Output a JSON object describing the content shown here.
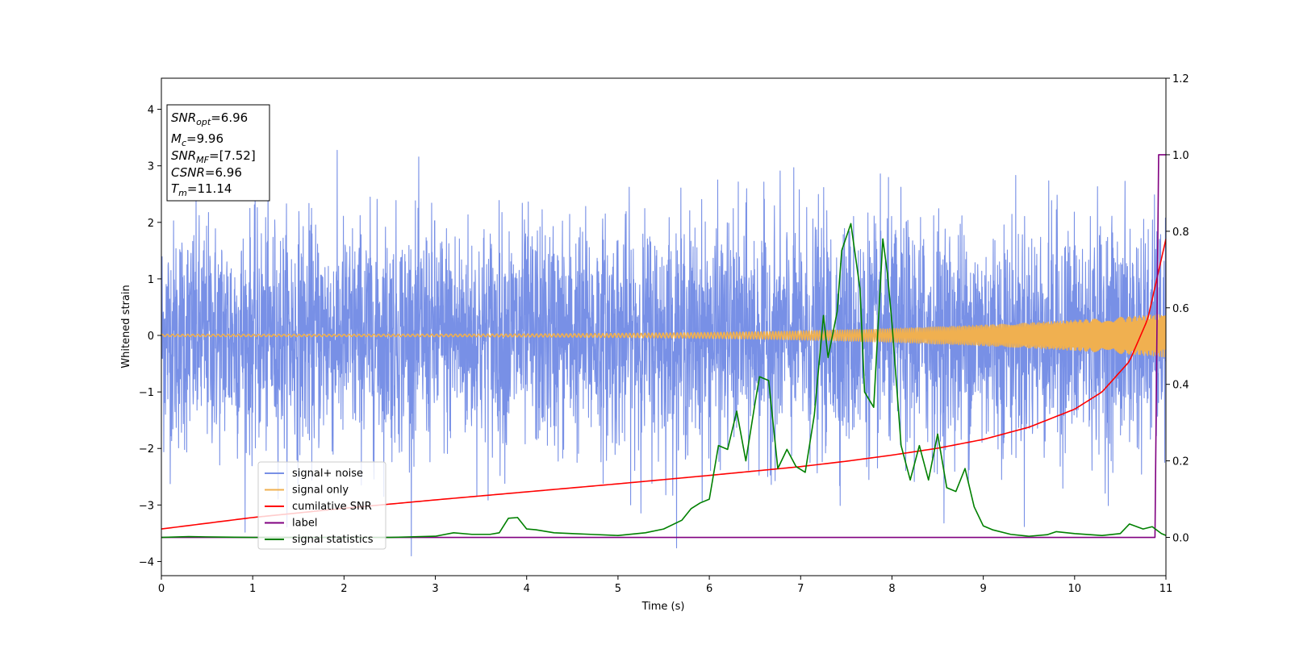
{
  "chart_data": {
    "type": "line",
    "xlabel": "Time (s)",
    "ylabel": "Whitened strain",
    "xlim": [
      0,
      11
    ],
    "ylim_left": [
      -4.25,
      4.55
    ],
    "ylim_right": [
      -0.1,
      1.2
    ],
    "x_ticks": [
      "0",
      "1",
      "2",
      "3",
      "4",
      "5",
      "6",
      "7",
      "8",
      "9",
      "10",
      "11"
    ],
    "y_ticks_left": [
      "4",
      "3",
      "2",
      "1",
      "0",
      "−1",
      "−2",
      "−3",
      "−4"
    ],
    "y_ticks_right": [
      "1.2",
      "1.0",
      "0.8",
      "0.6",
      "0.4",
      "0.2",
      "0.0"
    ],
    "info_box": {
      "snr_opt": {
        "main": "SNR",
        "sub": "opt",
        "value": "=6.96"
      },
      "mc": {
        "main": "M",
        "sub": "c",
        "value": "=9.96"
      },
      "snr_mf": {
        "main": "SNR",
        "sub": "MF",
        "value": "=[7.52]"
      },
      "csnr": {
        "main": "CSNR",
        "value": "=6.96"
      },
      "tm": {
        "main": "T",
        "sub": "m",
        "value": "=11.14"
      }
    },
    "legend_position": "lower-left",
    "series": [
      {
        "name": "signal+ noise",
        "axis": "left",
        "color": "#7890e6",
        "description_kind": "noise",
        "amplitude_sigma": 1.0,
        "x_range": [
          0,
          11
        ]
      },
      {
        "name": "signal only",
        "axis": "left",
        "color": "#f0b050",
        "description_kind": "chirp",
        "amplitude_start": 0.02,
        "amplitude_end": 0.38,
        "x_range": [
          0,
          11
        ]
      },
      {
        "name": "cumilative SNR",
        "axis": "right",
        "color": "#ff0000",
        "x": [
          0,
          1,
          2,
          3,
          4,
          5,
          6,
          7,
          7.5,
          8,
          8.5,
          9,
          9.5,
          10,
          10.3,
          10.6,
          10.8,
          11
        ],
        "y": [
          0.022,
          0.052,
          0.076,
          0.098,
          0.119,
          0.14,
          0.162,
          0.185,
          0.199,
          0.215,
          0.233,
          0.256,
          0.288,
          0.335,
          0.38,
          0.46,
          0.57,
          0.78
        ]
      },
      {
        "name": "label",
        "axis": "right",
        "color": "#800080",
        "x": [
          0,
          10.88,
          10.92,
          11
        ],
        "y": [
          0.0,
          0.0,
          1.0,
          1.0
        ]
      },
      {
        "name": "signal statistics",
        "axis": "right",
        "color": "#008000",
        "x": [
          0,
          0.3,
          0.6,
          1.0,
          1.5,
          2.0,
          2.5,
          3.0,
          3.2,
          3.4,
          3.6,
          3.7,
          3.8,
          3.9,
          4.0,
          4.1,
          4.3,
          4.5,
          4.7,
          5.0,
          5.3,
          5.5,
          5.7,
          5.8,
          5.9,
          6.0,
          6.1,
          6.2,
          6.3,
          6.4,
          6.5,
          6.55,
          6.65,
          6.75,
          6.85,
          6.95,
          7.05,
          7.15,
          7.25,
          7.3,
          7.4,
          7.45,
          7.55,
          7.65,
          7.7,
          7.8,
          7.9,
          7.95,
          8.0,
          8.1,
          8.2,
          8.3,
          8.4,
          8.5,
          8.6,
          8.7,
          8.8,
          8.9,
          9.0,
          9.1,
          9.3,
          9.5,
          9.7,
          9.8,
          10.0,
          10.3,
          10.5,
          10.6,
          10.75,
          10.85,
          10.95,
          11.0
        ],
        "y": [
          0.0,
          0.002,
          0.001,
          0.0,
          0.0,
          0.0,
          0.0,
          0.003,
          0.012,
          0.008,
          0.008,
          0.012,
          0.05,
          0.052,
          0.022,
          0.02,
          0.012,
          0.01,
          0.008,
          0.005,
          0.012,
          0.022,
          0.045,
          0.075,
          0.09,
          0.1,
          0.24,
          0.23,
          0.33,
          0.2,
          0.35,
          0.42,
          0.41,
          0.18,
          0.23,
          0.185,
          0.17,
          0.32,
          0.58,
          0.47,
          0.59,
          0.75,
          0.82,
          0.65,
          0.38,
          0.34,
          0.78,
          0.69,
          0.56,
          0.24,
          0.15,
          0.24,
          0.15,
          0.27,
          0.13,
          0.12,
          0.18,
          0.08,
          0.03,
          0.02,
          0.008,
          0.003,
          0.007,
          0.015,
          0.01,
          0.005,
          0.01,
          0.035,
          0.022,
          0.028,
          0.01,
          0.005
        ]
      }
    ]
  }
}
